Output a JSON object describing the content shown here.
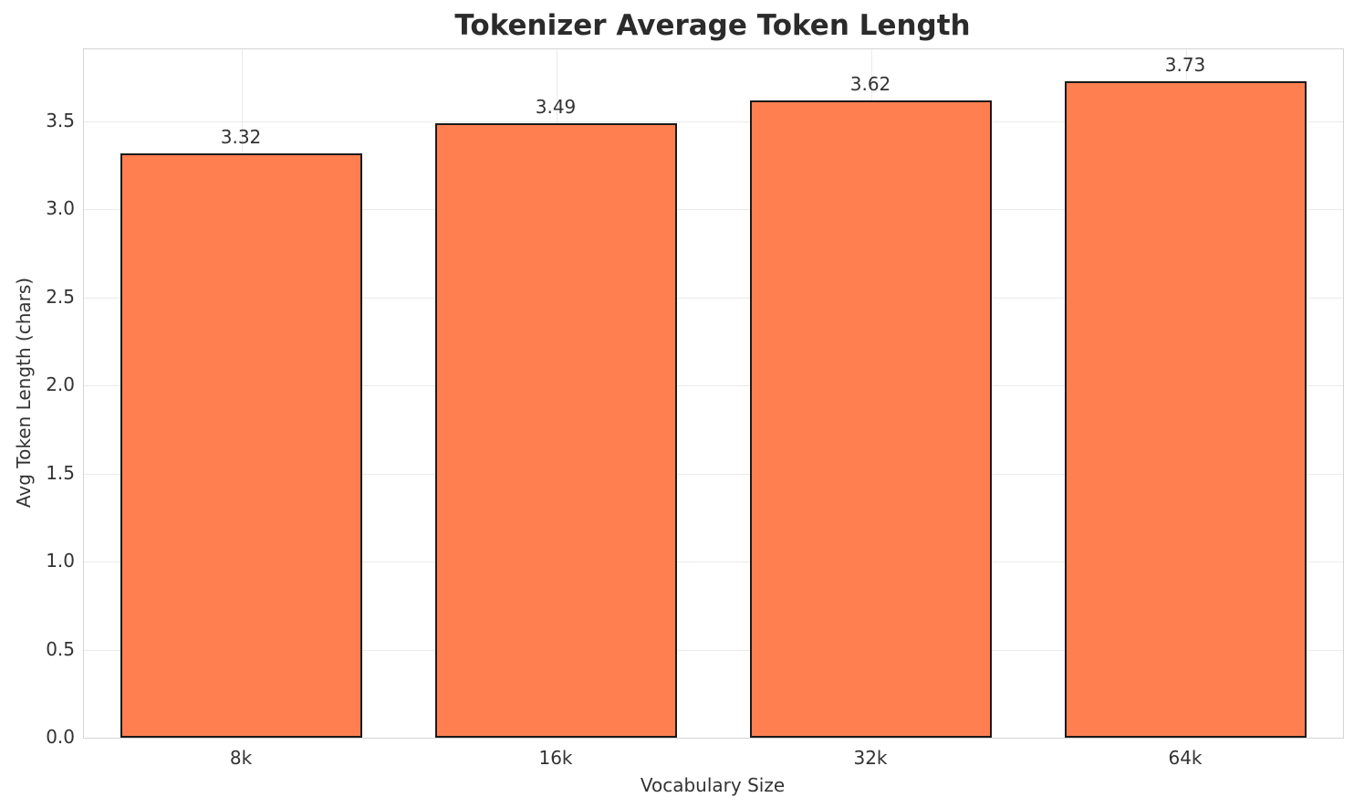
{
  "chart_data": {
    "type": "bar",
    "title": "Tokenizer Average Token Length",
    "xlabel": "Vocabulary Size",
    "ylabel": "Avg Token Length (chars)",
    "categories": [
      "8k",
      "16k",
      "32k",
      "64k"
    ],
    "values": [
      3.32,
      3.49,
      3.62,
      3.73
    ],
    "value_labels": [
      "3.32",
      "3.49",
      "3.62",
      "3.73"
    ],
    "ytick_values": [
      0.0,
      0.5,
      1.0,
      1.5,
      2.0,
      2.5,
      3.0,
      3.5
    ],
    "ytick_labels": [
      "0.0",
      "0.5",
      "1.0",
      "1.5",
      "2.0",
      "2.5",
      "3.0",
      "3.5"
    ],
    "ylim": [
      0,
      3.91
    ],
    "grid": true,
    "legend": "none",
    "bar_color": "#ff7f50",
    "bar_edge_color": "#1a1a1a",
    "grid_color": "#ebebeb",
    "axis_border_color": "#d4d4d4",
    "text_color": "#333333",
    "title_color": "#2b2b2b"
  }
}
